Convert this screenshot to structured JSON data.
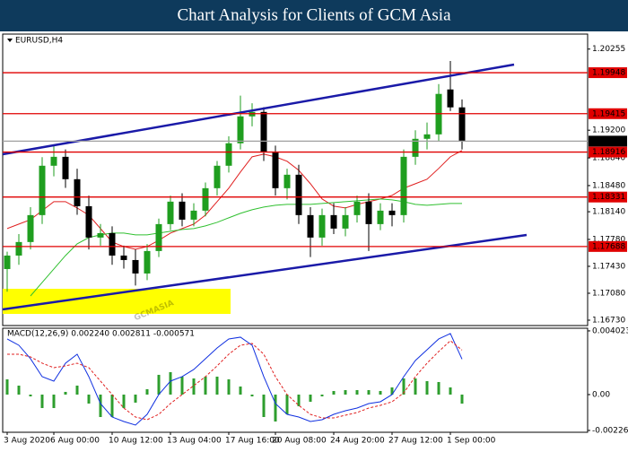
{
  "chart_data": [
    {
      "type": "candlestick",
      "title": "Chart Analysis for Clients of GCM Asia",
      "symbol_label": "EURUSD,H4",
      "watermark": "GCMASIA",
      "open": [
        1.17395,
        1.1757,
        1.17746,
        1.18096,
        1.18738,
        1.18854,
        1.18563,
        1.18212,
        1.17804,
        1.17862,
        1.1757,
        1.17512,
        1.17337,
        1.17629,
        1.17979,
        1.18271,
        1.18037,
        1.18154,
        1.18446,
        1.18738,
        1.1903,
        1.1938,
        1.19438,
        1.18913,
        1.18446,
        1.18621,
        1.18096,
        1.17804,
        1.18096,
        1.17921,
        1.18096,
        1.18271,
        1.17979,
        1.18154,
        1.18096,
        1.18854,
        1.19088,
        1.19146,
        1.1973,
        1.19497
      ],
      "high": [
        1.1762,
        1.1785,
        1.182,
        1.1885,
        1.19,
        1.1895,
        1.187,
        1.1835,
        1.1798,
        1.1795,
        1.177,
        1.1765,
        1.1772,
        1.1805,
        1.1835,
        1.1838,
        1.1825,
        1.1852,
        1.188,
        1.1912,
        1.1965,
        1.1955,
        1.195,
        1.19,
        1.187,
        1.1875,
        1.182,
        1.1818,
        1.1825,
        1.182,
        1.1835,
        1.1838,
        1.1825,
        1.1825,
        1.1895,
        1.192,
        1.193,
        1.198,
        1.201,
        1.196
      ],
      "low": [
        1.171,
        1.1745,
        1.1765,
        1.1798,
        1.186,
        1.1845,
        1.181,
        1.1765,
        1.177,
        1.1745,
        1.174,
        1.1718,
        1.1725,
        1.1755,
        1.179,
        1.1795,
        1.1795,
        1.1808,
        1.1835,
        1.1865,
        1.1895,
        1.1925,
        1.188,
        1.1835,
        1.183,
        1.1798,
        1.1755,
        1.177,
        1.1785,
        1.1782,
        1.18,
        1.17629,
        1.179,
        1.1795,
        1.18,
        1.1875,
        1.1895,
        1.1905,
        1.1945,
        1.1895
      ],
      "close": [
        1.1757,
        1.17746,
        1.18096,
        1.18738,
        1.18854,
        1.18563,
        1.18212,
        1.17804,
        1.17862,
        1.1757,
        1.17512,
        1.17337,
        1.17629,
        1.17979,
        1.18271,
        1.18037,
        1.18154,
        1.18446,
        1.18738,
        1.1903,
        1.1938,
        1.19438,
        1.18913,
        1.18446,
        1.18621,
        1.18096,
        1.17804,
        1.18096,
        1.17921,
        1.18096,
        1.18271,
        1.17979,
        1.18154,
        1.18096,
        1.18854,
        1.19088,
        1.19146,
        1.19672,
        1.19497,
        1.19058
      ],
      "up_color": "#1f9e1f",
      "down_color": "#000000",
      "moving_averages": [
        {
          "color": "#e02020",
          "values": [
            1.17921,
            1.17979,
            1.18037,
            1.18154,
            1.18271,
            1.18271,
            1.18189,
            1.18096,
            1.17921,
            1.17746,
            1.17687,
            1.17652,
            1.17687,
            1.17769,
            1.17862,
            1.17921,
            1.17979,
            1.18096,
            1.18271,
            1.18446,
            1.18656,
            1.18854,
            1.18889,
            1.18854,
            1.18796,
            1.18679,
            1.18504,
            1.18306,
            1.18212,
            1.18189,
            1.18236,
            1.18271,
            1.18306,
            1.18352,
            1.18446,
            1.18504,
            1.18563,
            1.18703,
            1.18854,
            1.18936
          ]
        },
        {
          "color": "#30c030",
          "values": [
            null,
            null,
            1.17045,
            1.1722,
            1.17395,
            1.1757,
            1.17722,
            1.17804,
            1.17839,
            1.17862,
            1.17862,
            1.17839,
            1.17839,
            1.17862,
            1.17886,
            1.17909,
            1.17921,
            1.17956,
            1.18002,
            1.18061,
            1.18119,
            1.18166,
            1.18201,
            1.18224,
            1.18236,
            1.18236,
            1.18236,
            1.18248,
            1.18259,
            1.18271,
            1.18283,
            1.18294,
            1.18306,
            1.18294,
            1.18271,
            1.18236,
            1.18224,
            1.18236,
            1.18248,
            1.18248
          ]
        }
      ],
      "levels": [
        {
          "value": 1.19948,
          "color": "#e00000"
        },
        {
          "value": 1.19415,
          "color": "#e00000"
        },
        {
          "value": 1.18916,
          "color": "#e00000"
        },
        {
          "value": 1.18331,
          "color": "#e00000"
        },
        {
          "value": 1.17688,
          "color": "#e00000"
        },
        {
          "value": 1.19058,
          "color": "#a0a0a0",
          "label_color": "#000000"
        }
      ],
      "ylim": [
        1.1666,
        1.2045
      ],
      "yticks": [
        1.20255,
        {
          "value": 1.192,
          "label": "1.19200"
        },
        {
          "value": 1.1884,
          "label": "1.18840"
        },
        {
          "value": 1.1848,
          "label": "1.18480"
        },
        {
          "value": 1.1814,
          "label": "1.18140"
        },
        {
          "value": 1.1778,
          "label": "1.17780"
        },
        {
          "value": 1.1743,
          "label": "1.17430"
        },
        {
          "value": 1.1708,
          "label": "1.17080"
        },
        {
          "value": 1.1673,
          "label": "1.16730"
        }
      ]
    },
    {
      "type": "macd",
      "indicator_label": "MACD(12,26,9) 0.002240 0.002811 -0.000571",
      "categories": [
        "3 Aug 2020",
        null,
        null,
        null,
        "6 Aug 00:00",
        null,
        null,
        null,
        null,
        "10 Aug 12:00",
        null,
        null,
        null,
        null,
        "13 Aug 04:00",
        null,
        null,
        null,
        null,
        "17 Aug 16:00",
        null,
        null,
        null,
        "20 Aug 08:00",
        null,
        null,
        null,
        null,
        "24 Aug 20:00",
        null,
        null,
        null,
        null,
        "27 Aug 12:00",
        null,
        null,
        null,
        null,
        "1 Sep 00:00",
        null
      ],
      "macd": {
        "color": "#1030e0",
        "values": [
          0.003513,
          0.003116,
          0.002266,
          0.001133,
          0.00085,
          0.001983,
          0.00255,
          0.001133,
          -0.000567,
          -0.001417,
          -0.0017,
          -0.001926,
          -0.001247,
          0,
          0.00085,
          0.001133,
          0.001586,
          0.002266,
          0.002946,
          0.003513,
          0.003626,
          0.003116,
          0.001133,
          -0.000567,
          -0.001247,
          -0.001417,
          -0.0017,
          -0.001586,
          -0.001247,
          -0.00102,
          -0.00085,
          -0.000567,
          -0.000453,
          0,
          0.001133,
          0.002153,
          0.002833,
          0.003513,
          0.003853,
          0.00224
        ]
      },
      "signal": {
        "color": "#e02020",
        "values": [
          0.00255,
          0.00255,
          0.00238,
          0.001983,
          0.0017,
          0.001813,
          0.001983,
          0.0017,
          0.00085,
          0,
          -0.00085,
          -0.001417,
          -0.001586,
          -0.001247,
          -0.000567,
          0,
          0.000567,
          0.001133,
          0.001813,
          0.00255,
          0.003116,
          0.00323,
          0.00255,
          0.001133,
          0,
          -0.00068,
          -0.001247,
          -0.001473,
          -0.001473,
          -0.001303,
          -0.001133,
          -0.00085,
          -0.00068,
          -0.000453,
          0.000113,
          0.001133,
          0.001983,
          0.00272,
          0.0034,
          0.002811
        ]
      },
      "histogram": {
        "color": "#2e9e2e",
        "values": [
          0.000963,
          0.000566,
          -0.000114,
          -0.00085,
          -0.00085,
          0.00017,
          0.000567,
          -0.000567,
          -0.001417,
          -0.001417,
          -0.00085,
          -0.000509,
          0.000339,
          0.001247,
          0.001417,
          0.001133,
          0.001019,
          0.001133,
          0.001133,
          0.000963,
          0.00051,
          -0.000114,
          -0.001417,
          -0.0017,
          -0.001247,
          -0.000737,
          -0.000453,
          -0.000113,
          0.000226,
          0.000283,
          0.000283,
          0.000283,
          0.000227,
          0.000453,
          0.00102,
          0.00102,
          0.00085,
          0.000793,
          0.000453,
          -0.000571
        ]
      },
      "ylim": [
        -0.00238,
        0.00419
      ],
      "yticks": [
        0.004023,
        {
          "value": 0,
          "label": "0.00"
        },
        -0.002264
      ]
    }
  ]
}
